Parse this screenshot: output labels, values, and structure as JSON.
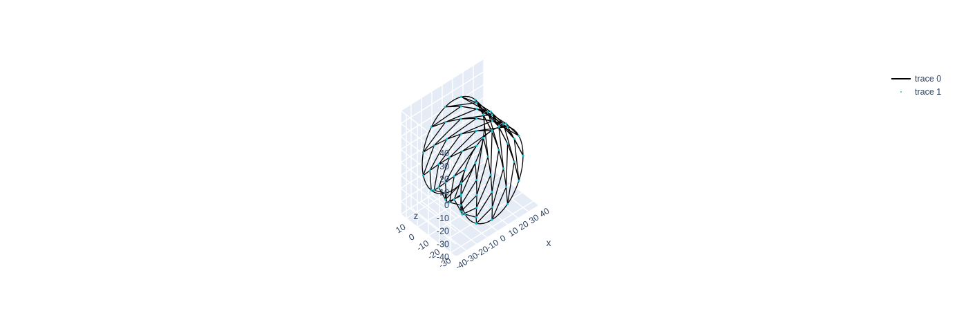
{
  "chart_data": {
    "type": "scatter3d",
    "axes": {
      "x": {
        "title": "x",
        "ticks": [
          "-40",
          "-30",
          "-20",
          "-10",
          "0",
          "10",
          "20",
          "30",
          "40"
        ],
        "range": [
          -40,
          40
        ]
      },
      "y": {
        "title": "",
        "ticks": [
          "-30",
          "-20",
          "-10",
          "0",
          "10"
        ],
        "range": [
          -35,
          15
        ]
      },
      "z": {
        "title": "z",
        "ticks": [
          "-40",
          "-30",
          "-20",
          "-10",
          "0",
          "10",
          "20",
          "30",
          "40"
        ],
        "range": [
          -40,
          40
        ]
      }
    },
    "series": [
      {
        "name": "trace 0",
        "mode": "lines",
        "color": "#000000"
      },
      {
        "name": "trace 1",
        "mode": "markers",
        "color": "#17becf"
      }
    ],
    "scene_background": "#e5ecf6",
    "grid_color": "#ffffff",
    "legend_position": "top-right"
  },
  "legend": {
    "items": [
      {
        "label": "trace 0"
      },
      {
        "label": "trace 1"
      }
    ]
  }
}
